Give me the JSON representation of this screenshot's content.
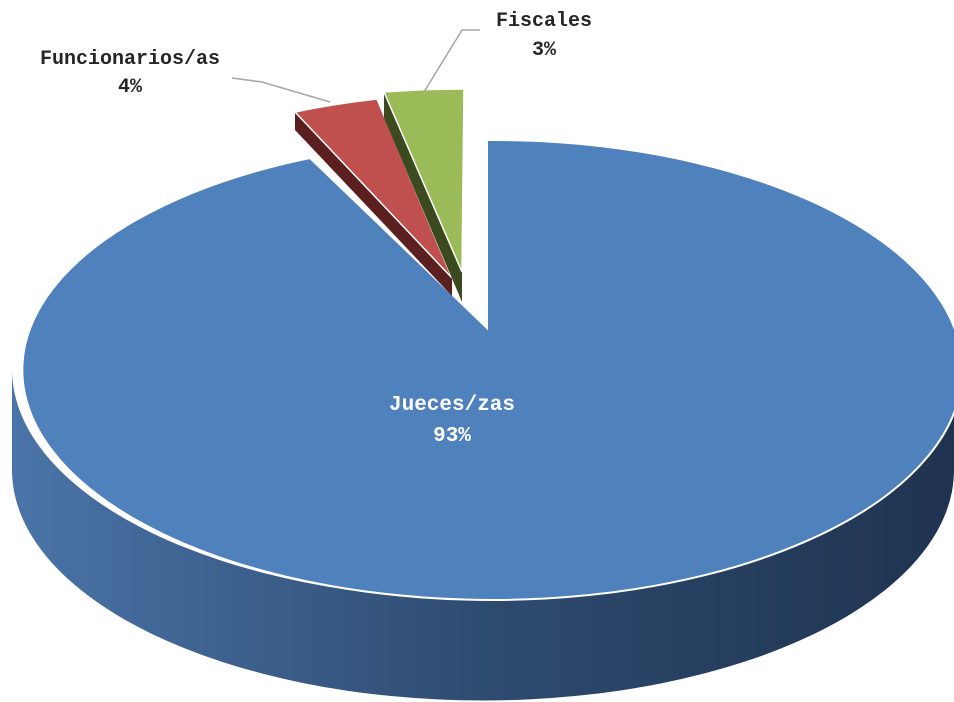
{
  "chart_data": {
    "type": "pie",
    "style": "3d-exploded",
    "title": "",
    "slices": [
      {
        "name": "Jueces/zas",
        "value": 93,
        "label": "93%",
        "color": "#4f81bd"
      },
      {
        "name": "Funcionarios/as",
        "value": 4,
        "label": "4%",
        "color": "#c0504d"
      },
      {
        "name": "Fiscales",
        "value": 3,
        "label": "3%",
        "color": "#9bbb59"
      }
    ],
    "legend": "none",
    "data_labels": "category-and-percent"
  }
}
